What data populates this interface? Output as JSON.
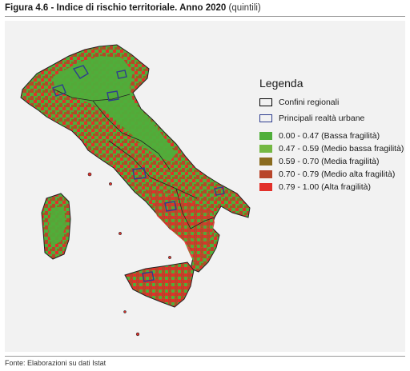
{
  "figure": {
    "title_bold": "Figura 4.6 - Indice di rischio territoriale. Anno 2020",
    "title_suffix": "(quintili)",
    "source": "Fonte: Elaborazioni su dati Istat"
  },
  "legend": {
    "title": "Legenda",
    "outline_items": [
      {
        "label": "Confini regionali",
        "color": "#000000"
      },
      {
        "label": "Principali realtà urbane",
        "color": "#2e3d8f"
      }
    ],
    "classes": [
      {
        "label": "0.00 - 0.47 (Bassa fragilità)",
        "color": "#4fae3a"
      },
      {
        "label": "0.47 - 0.59 (Medio bassa fragilità)",
        "color": "#74b843"
      },
      {
        "label": "0.59 - 0.70 (Media fragilità)",
        "color": "#8a6b1f"
      },
      {
        "label": "0.70 - 0.79 (Medio alta fragilità)",
        "color": "#b8452a"
      },
      {
        "label": "0.79 - 1.00 (Alta fragilità)",
        "color": "#e2302a"
      }
    ]
  }
}
